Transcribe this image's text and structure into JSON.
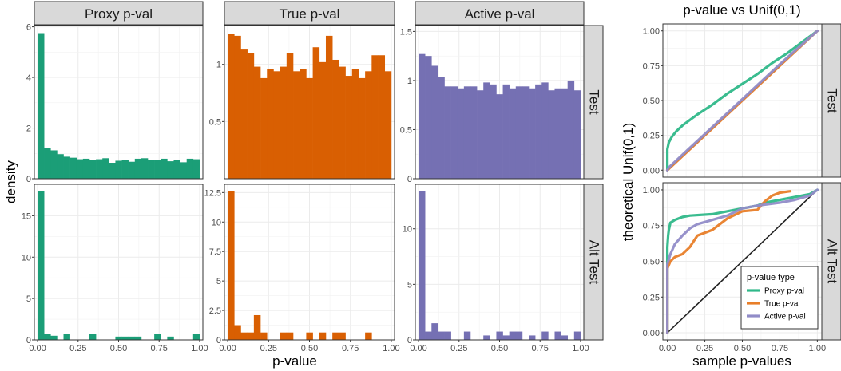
{
  "colors": {
    "proxy": "#1b9e77",
    "true": "#d95f02",
    "active": "#7570b3",
    "proxy_line": "#2fb889",
    "true_line": "#e87e29",
    "active_line": "#918cc8",
    "strip_bg": "#d9d9d9",
    "grid": "#ebebeb",
    "diag": "#222222"
  },
  "hist": {
    "xlabel": "p-value",
    "ylabel": "density",
    "columns": [
      "Proxy p-val",
      "True p-val",
      "Active p-val"
    ],
    "rows": [
      "Test",
      "Alt Test"
    ],
    "xticks": [
      "0.00",
      "0.25",
      "0.50",
      "0.75",
      "1.00"
    ]
  },
  "qq": {
    "title": "p-value vs Unif(0,1)",
    "xlabel": "sample p-values",
    "ylabel": "theoretical Unif(0,1)",
    "rows": [
      "Test",
      "Alt Test"
    ],
    "xticks": [
      "0.00",
      "0.25",
      "0.50",
      "0.75",
      "1.00"
    ],
    "yticks": [
      "0.00",
      "0.25",
      "0.50",
      "0.75",
      "1.00"
    ],
    "legend_title": "p-value type",
    "legend_items": [
      "Proxy p-val",
      "True p-val",
      "Active p-val"
    ]
  },
  "chart_data": [
    {
      "type": "bar",
      "panel": "Proxy p-val / Test",
      "bin_width": 0.04,
      "bins_start": 0,
      "values": [
        5.75,
        1.22,
        1.12,
        0.97,
        0.87,
        0.83,
        0.77,
        0.79,
        0.75,
        0.77,
        0.81,
        0.63,
        0.71,
        0.75,
        0.67,
        0.79,
        0.81,
        0.75,
        0.73,
        0.79,
        0.69,
        0.75,
        0.65,
        0.79,
        0.77
      ],
      "ylim": [
        0,
        6.05
      ],
      "yticks": [
        0,
        2,
        4,
        6
      ]
    },
    {
      "type": "bar",
      "panel": "True p-val / Test",
      "bin_width": 0.04,
      "bins_start": 0,
      "values": [
        1.27,
        1.25,
        1.13,
        1.1,
        0.98,
        0.88,
        0.96,
        0.94,
        0.98,
        1.1,
        0.94,
        0.96,
        0.88,
        1.15,
        1.02,
        1.25,
        1.04,
        0.98,
        0.9,
        0.96,
        0.88,
        0.94,
        1.08,
        1.08,
        0.94
      ],
      "ylim": [
        0,
        1.34
      ],
      "yticks": [
        0.5,
        1.0
      ]
    },
    {
      "type": "bar",
      "panel": "Active p-val / Test",
      "bin_width": 0.04,
      "bins_start": 0,
      "values": [
        1.27,
        1.25,
        1.15,
        1.04,
        0.94,
        0.94,
        0.92,
        0.94,
        0.94,
        0.9,
        0.98,
        0.96,
        0.86,
        0.96,
        0.92,
        0.94,
        0.94,
        0.92,
        0.96,
        0.98,
        0.9,
        0.92,
        0.92,
        1.0,
        0.9
      ],
      "ylim": [
        0,
        1.56
      ],
      "yticks": [
        0,
        0.5,
        1.0,
        1.5
      ]
    },
    {
      "type": "bar",
      "panel": "Proxy p-val / Alt Test",
      "bin_width": 0.04,
      "bins_start": 0,
      "values": [
        18.0,
        0.75,
        0.5,
        0,
        0.75,
        0,
        0,
        0,
        0.75,
        0,
        0,
        0,
        0.4,
        0.4,
        0.4,
        0.4,
        0,
        0,
        0.75,
        0,
        0.4,
        0,
        0,
        0,
        0.75
      ],
      "ylim": [
        0,
        18.8
      ],
      "yticks": [
        0,
        5,
        10,
        15
      ]
    },
    {
      "type": "bar",
      "panel": "True p-val / Alt Test",
      "bin_width": 0.04,
      "bins_start": 0,
      "values": [
        12.6,
        1.25,
        0.63,
        0.63,
        2.1,
        0.63,
        0,
        0,
        0.63,
        0.63,
        0,
        0,
        0.63,
        0,
        0.63,
        0,
        0.63,
        0.63,
        0,
        0,
        0,
        0.63,
        0,
        0,
        0
      ],
      "ylim": [
        0,
        13.2
      ],
      "yticks": [
        0,
        2.5,
        5.0,
        7.5,
        10.0,
        12.5
      ]
    },
    {
      "type": "bar",
      "panel": "Active p-val / Alt Test",
      "bin_width": 0.04,
      "bins_start": 0,
      "values": [
        13.4,
        0.75,
        1.5,
        0.75,
        0.75,
        0,
        0,
        0.75,
        0,
        0,
        0.4,
        0,
        0.75,
        0.4,
        0.75,
        0.75,
        0,
        0.4,
        0,
        0.75,
        0,
        0.75,
        0.4,
        0,
        0.75
      ],
      "ylim": [
        0,
        14.0
      ],
      "yticks": [
        0,
        5,
        10
      ]
    },
    {
      "type": "line",
      "panel": "QQ / Test",
      "xlim": [
        0,
        1
      ],
      "ylim": [
        0,
        1
      ],
      "series": [
        {
          "name": "Proxy p-val",
          "x": [
            0,
            0,
            0.01,
            0.03,
            0.06,
            0.1,
            0.15,
            0.2,
            0.3,
            0.4,
            0.5,
            0.6,
            0.7,
            0.8,
            0.9,
            1.0
          ],
          "y": [
            0,
            0.15,
            0.2,
            0.24,
            0.28,
            0.32,
            0.36,
            0.4,
            0.47,
            0.55,
            0.62,
            0.69,
            0.77,
            0.84,
            0.92,
            1.0
          ]
        },
        {
          "name": "True p-val",
          "x": [
            0,
            0.25,
            0.5,
            0.75,
            1.0
          ],
          "y": [
            0,
            0.25,
            0.5,
            0.75,
            1.0
          ]
        },
        {
          "name": "Active p-val",
          "x": [
            0,
            0.01,
            0.05,
            0.1,
            0.25,
            0.5,
            0.75,
            1.0
          ],
          "y": [
            0,
            0.02,
            0.06,
            0.11,
            0.26,
            0.51,
            0.76,
            1.0
          ]
        }
      ]
    },
    {
      "type": "line",
      "panel": "QQ / Alt Test",
      "xlim": [
        0,
        1
      ],
      "ylim": [
        0,
        1
      ],
      "series": [
        {
          "name": "Proxy p-val",
          "x": [
            0,
            0,
            0.005,
            0.01,
            0.02,
            0.05,
            0.1,
            0.15,
            0.3,
            0.4,
            0.5,
            0.6,
            0.65,
            0.75,
            0.85,
            0.95,
            1.0
          ],
          "y": [
            0,
            0.6,
            0.68,
            0.72,
            0.77,
            0.79,
            0.81,
            0.82,
            0.83,
            0.85,
            0.87,
            0.89,
            0.91,
            0.93,
            0.95,
            0.97,
            1.0
          ]
        },
        {
          "name": "True p-val",
          "x": [
            0,
            0,
            0.02,
            0.05,
            0.1,
            0.15,
            0.2,
            0.3,
            0.4,
            0.5,
            0.6,
            0.65,
            0.7,
            0.75,
            0.82
          ],
          "y": [
            0,
            0.45,
            0.5,
            0.53,
            0.55,
            0.6,
            0.68,
            0.72,
            0.8,
            0.85,
            0.86,
            0.92,
            0.96,
            0.98,
            0.99
          ]
        },
        {
          "name": "Active p-val",
          "x": [
            0,
            0,
            0.02,
            0.05,
            0.1,
            0.15,
            0.2,
            0.3,
            0.4,
            0.5,
            0.6,
            0.75,
            0.85,
            0.95,
            1.0
          ],
          "y": [
            0,
            0.48,
            0.55,
            0.62,
            0.68,
            0.73,
            0.76,
            0.79,
            0.82,
            0.87,
            0.89,
            0.91,
            0.93,
            0.96,
            1.0
          ]
        }
      ]
    }
  ]
}
